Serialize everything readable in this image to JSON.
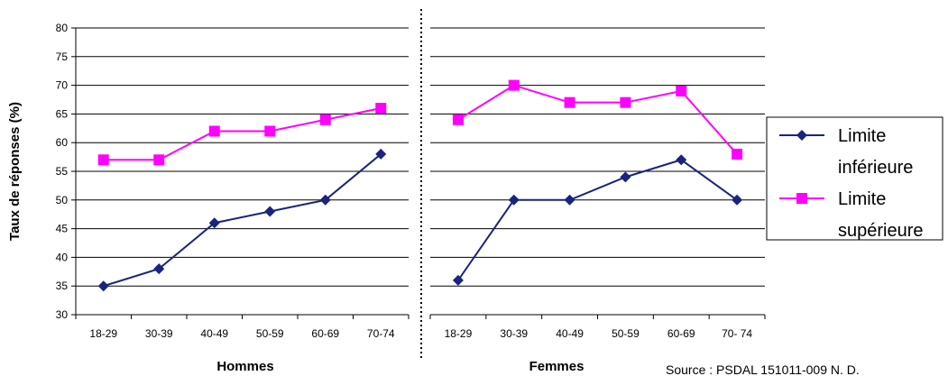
{
  "chart_data": {
    "type": "line",
    "ylabel": "Taux de réponses (%)",
    "ylim": [
      30,
      80
    ],
    "yticks": [
      30,
      35,
      40,
      45,
      50,
      55,
      60,
      65,
      70,
      75,
      80
    ],
    "grid": true,
    "legend_position": "right",
    "panels": [
      {
        "name": "Hommes",
        "categories": [
          "18-29",
          "30-39",
          "40-49",
          "50-59",
          "60-69",
          "70-74"
        ],
        "series": [
          {
            "name": "Limite inférieure",
            "values": [
              35,
              38,
              46,
              48,
              50,
              58
            ]
          },
          {
            "name": "Limite supérieure",
            "values": [
              57,
              57,
              62,
              62,
              64,
              66
            ]
          }
        ]
      },
      {
        "name": "Femmes",
        "categories": [
          "18-29",
          "30-39",
          "40-49",
          "50-59",
          "60-69",
          "70- 74"
        ],
        "series": [
          {
            "name": "Limite inférieure",
            "values": [
              36,
              50,
              50,
              54,
              57,
              50
            ]
          },
          {
            "name": "Limite supérieure",
            "values": [
              64,
              70,
              67,
              67,
              69,
              58
            ]
          }
        ]
      }
    ],
    "legend": [
      {
        "line1": "Limite",
        "line2": "inférieure",
        "color": "#1a237e",
        "marker": "diamond"
      },
      {
        "line1": "Limite",
        "line2": "supérieure",
        "color": "#ff00ff",
        "marker": "square"
      }
    ],
    "source_note": "Source : PSDAL 151011-009 N. D."
  }
}
